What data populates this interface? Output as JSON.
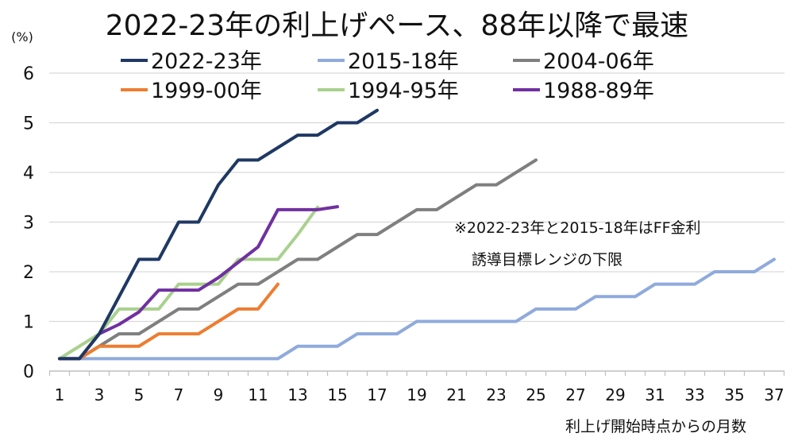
{
  "chart_data": {
    "type": "line",
    "title": "2022-23年の利上げペース、88年以降で最速",
    "ylabel": "(%)",
    "xlabel": "利上げ開始時点からの月数",
    "ylim": [
      0,
      6
    ],
    "xlim": [
      1,
      37
    ],
    "yticks": [
      "0",
      "1",
      "2",
      "3",
      "4",
      "5",
      "6"
    ],
    "xticks": [
      "1",
      "3",
      "5",
      "7",
      "9",
      "11",
      "13",
      "15",
      "17",
      "19",
      "21",
      "23",
      "25",
      "27",
      "29",
      "31",
      "33",
      "35",
      "37"
    ],
    "grid": true,
    "legend_position": "top",
    "annotation": [
      "※2022-23年と2015-18年はFF金利",
      "誘導目標レンジの下限"
    ],
    "series": [
      {
        "name": "2022-23年",
        "color": "#1f3864",
        "values": [
          0.25,
          0.25,
          0.75,
          1.5,
          2.25,
          2.25,
          3,
          3,
          3.75,
          4.25,
          4.25,
          4.5,
          4.75,
          4.75,
          5,
          5,
          5.25
        ]
      },
      {
        "name": "2015-18年",
        "color": "#8faadc",
        "values": [
          0.25,
          0.25,
          0.25,
          0.25,
          0.25,
          0.25,
          0.25,
          0.25,
          0.25,
          0.25,
          0.25,
          0.25,
          0.5,
          0.5,
          0.5,
          0.75,
          0.75,
          0.75,
          1,
          1,
          1,
          1,
          1,
          1,
          1.25,
          1.25,
          1.25,
          1.5,
          1.5,
          1.5,
          1.75,
          1.75,
          1.75,
          2,
          2,
          2,
          2.25
        ]
      },
      {
        "name": "2004-06年",
        "color": "#7f7f7f",
        "values": [
          0.25,
          0.25,
          0.5,
          0.75,
          0.75,
          1,
          1.25,
          1.25,
          1.5,
          1.75,
          1.75,
          2,
          2.25,
          2.25,
          2.5,
          2.75,
          2.75,
          3,
          3.25,
          3.25,
          3.5,
          3.75,
          3.75,
          4,
          4.25
        ]
      },
      {
        "name": "1999-00年",
        "color": "#ed7d31",
        "values": [
          0.25,
          0.25,
          0.5,
          0.5,
          0.5,
          0.75,
          0.75,
          0.75,
          1,
          1.25,
          1.25,
          1.75
        ]
      },
      {
        "name": "1994-95年",
        "color": "#a9d18e",
        "values": [
          0.25,
          0.5,
          0.75,
          1.25,
          1.25,
          1.25,
          1.75,
          1.75,
          1.75,
          2.25,
          2.25,
          2.25,
          2.75,
          3.3
        ]
      },
      {
        "name": "1988-89年",
        "color": "#7030a0",
        "values": [
          0.25,
          0.25,
          0.75,
          0.94,
          1.19,
          1.63,
          1.63,
          1.63,
          1.88,
          2.19,
          2.5,
          3.25,
          3.25,
          3.25,
          3.31
        ]
      }
    ]
  }
}
